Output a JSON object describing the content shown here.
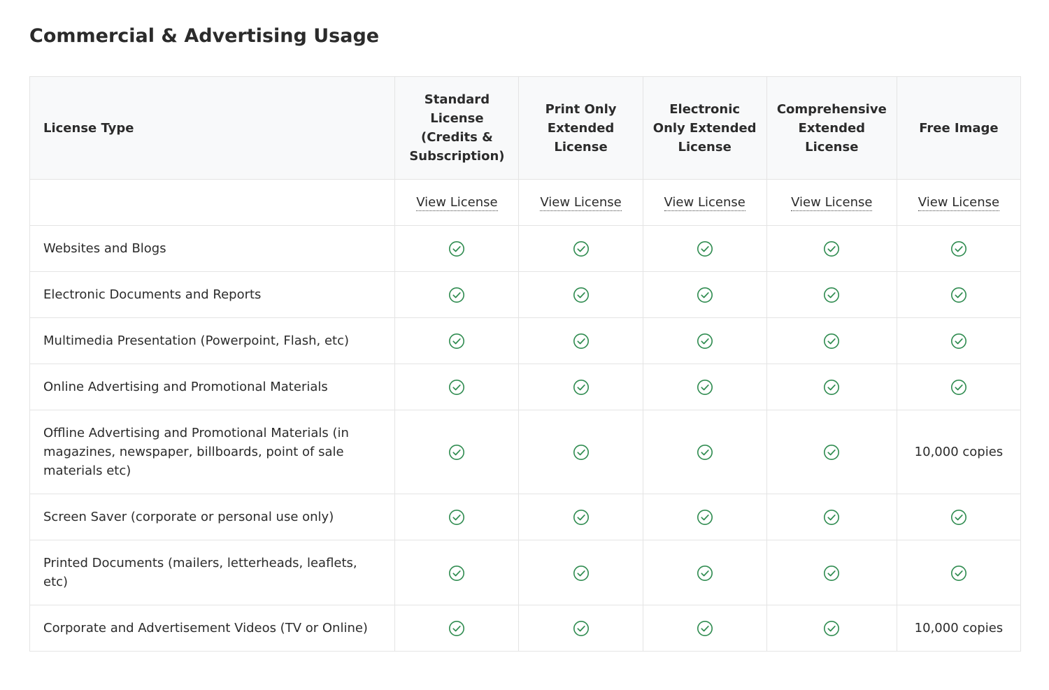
{
  "page": {
    "title": "Commercial & Advertising Usage"
  },
  "colors": {
    "check": "#2e8b4f",
    "header_bg": "#f8f9fa",
    "border": "#e4e4e4"
  },
  "table": {
    "row_header_label": "License Type",
    "columns": [
      {
        "key": "standard",
        "label": "Standard License (Credits & Subscription)",
        "link_label": "View License"
      },
      {
        "key": "print",
        "label": "Print Only Extended License",
        "link_label": "View License"
      },
      {
        "key": "electronic",
        "label": "Electronic Only Extended License",
        "link_label": "View License"
      },
      {
        "key": "comprehensive",
        "label": "Comprehensive Extended License",
        "link_label": "View License"
      },
      {
        "key": "free",
        "label": "Free Image",
        "link_label": "View License"
      }
    ],
    "rows": [
      {
        "label": "Websites and Blogs",
        "cells": [
          "check",
          "check",
          "check",
          "check",
          "check"
        ]
      },
      {
        "label": "Electronic Documents and Reports",
        "cells": [
          "check",
          "check",
          "check",
          "check",
          "check"
        ]
      },
      {
        "label": "Multimedia Presentation (Powerpoint, Flash, etc)",
        "cells": [
          "check",
          "check",
          "check",
          "check",
          "check"
        ]
      },
      {
        "label": "Online Advertising and Promotional Materials",
        "cells": [
          "check",
          "check",
          "check",
          "check",
          "check"
        ]
      },
      {
        "label": "Offline Advertising and Promotional Materials (in magazines, newspaper, billboards, point of sale materials etc)",
        "cells": [
          "check",
          "check",
          "check",
          "check",
          "10,000 copies"
        ]
      },
      {
        "label": "Screen Saver (corporate or personal use only)",
        "cells": [
          "check",
          "check",
          "check",
          "check",
          "check"
        ]
      },
      {
        "label": "Printed Documents (mailers, letterheads, leaflets, etc)",
        "cells": [
          "check",
          "check",
          "check",
          "check",
          "check"
        ]
      },
      {
        "label": "Corporate and Advertisement Videos (TV or Online)",
        "cells": [
          "check",
          "check",
          "check",
          "check",
          "10,000 copies"
        ]
      }
    ]
  }
}
